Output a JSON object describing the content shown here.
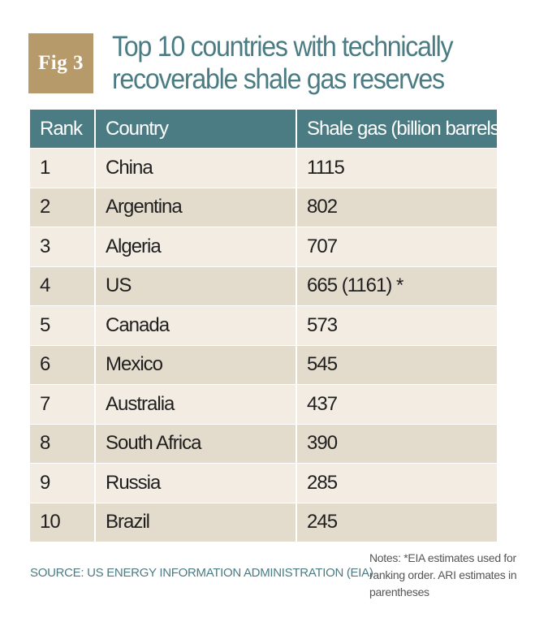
{
  "fig_label": "Fig 3",
  "title_lines": [
    "Top 10 countries with technically",
    "recoverable shale gas reserves"
  ],
  "source": "SOURCE: US ENERGY INFORMATION ADMINISTRATION (EIA)",
  "notes": "Notes: *EIA estimates used for ranking order. ARI estimates in parentheses",
  "colors": {
    "accent": "#4b7c83",
    "badge": "#b69a6a",
    "row_light": "#f2ece3",
    "row_dark": "#e3dbcc"
  },
  "chart_data": {
    "type": "table",
    "columns": [
      "Rank",
      "Country",
      "Shale gas (billion barrels)"
    ],
    "rows": [
      [
        "1",
        "China",
        "1115"
      ],
      [
        "2",
        "Argentina",
        "802"
      ],
      [
        "3",
        "Algeria",
        "707"
      ],
      [
        "4",
        "US",
        "665 (1161) *"
      ],
      [
        "5",
        "Canada",
        "573"
      ],
      [
        "6",
        "Mexico",
        "545"
      ],
      [
        "7",
        "Australia",
        "437"
      ],
      [
        "8",
        "South Africa",
        "390"
      ],
      [
        "9",
        "Russia",
        "285"
      ],
      [
        "10",
        "Brazil",
        "245"
      ]
    ]
  }
}
